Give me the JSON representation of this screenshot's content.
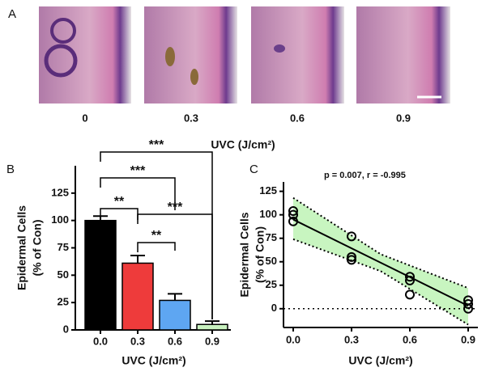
{
  "panel_a": {
    "label": "A",
    "images": [
      "0",
      "0.3",
      "0.6",
      "0.9"
    ],
    "x_label": "UVC (J/cm²)"
  },
  "chart_data": [
    {
      "type": "bar",
      "panel": "B",
      "categories": [
        "0.0",
        "0.3",
        "0.6",
        "0.9"
      ],
      "values": [
        100,
        61,
        27,
        5
      ],
      "errors": [
        4,
        7,
        6,
        3
      ],
      "colors": [
        "#000000",
        "#ee3b3b",
        "#5ea6f2",
        "#c9f2c0"
      ],
      "ylim": [
        0,
        150
      ],
      "yticks": [
        0,
        25,
        50,
        75,
        100,
        125
      ],
      "y_label": [
        "Epidermal Cells",
        "(% of Con)"
      ],
      "x_label": "UVC (J/cm²)",
      "annotations": [
        "***",
        "***",
        "**",
        "***",
        "**"
      ]
    },
    {
      "type": "scatter",
      "panel": "C",
      "annotation": "p = 0.007, r = -0.995",
      "x": [
        0,
        0,
        0,
        0.3,
        0.3,
        0.3,
        0.6,
        0.6,
        0.6,
        0.9,
        0.9,
        0.9
      ],
      "values": [
        104,
        100,
        93,
        77,
        55,
        52,
        34,
        30,
        15,
        9,
        5,
        0
      ],
      "fit": {
        "x": [
          0,
          0.45,
          0.9
        ],
        "values": [
          95,
          49,
          3
        ],
        "upper": [
          118,
          58,
          22
        ],
        "lower": [
          74,
          40,
          -17
        ],
        "color": "#c8f5c0"
      },
      "xlim": [
        -0.05,
        0.95
      ],
      "ylim": [
        -20,
        135
      ],
      "xticks": [
        {
          "value": 0,
          "label": "0.0"
        },
        0.3,
        0.6,
        0.9
      ],
      "yticks": [
        0,
        25,
        50,
        75,
        100,
        125
      ],
      "y_label": [
        "Epidermal Cells",
        "(% of Con)"
      ],
      "x_label": "UVC (J/cm²)"
    }
  ]
}
